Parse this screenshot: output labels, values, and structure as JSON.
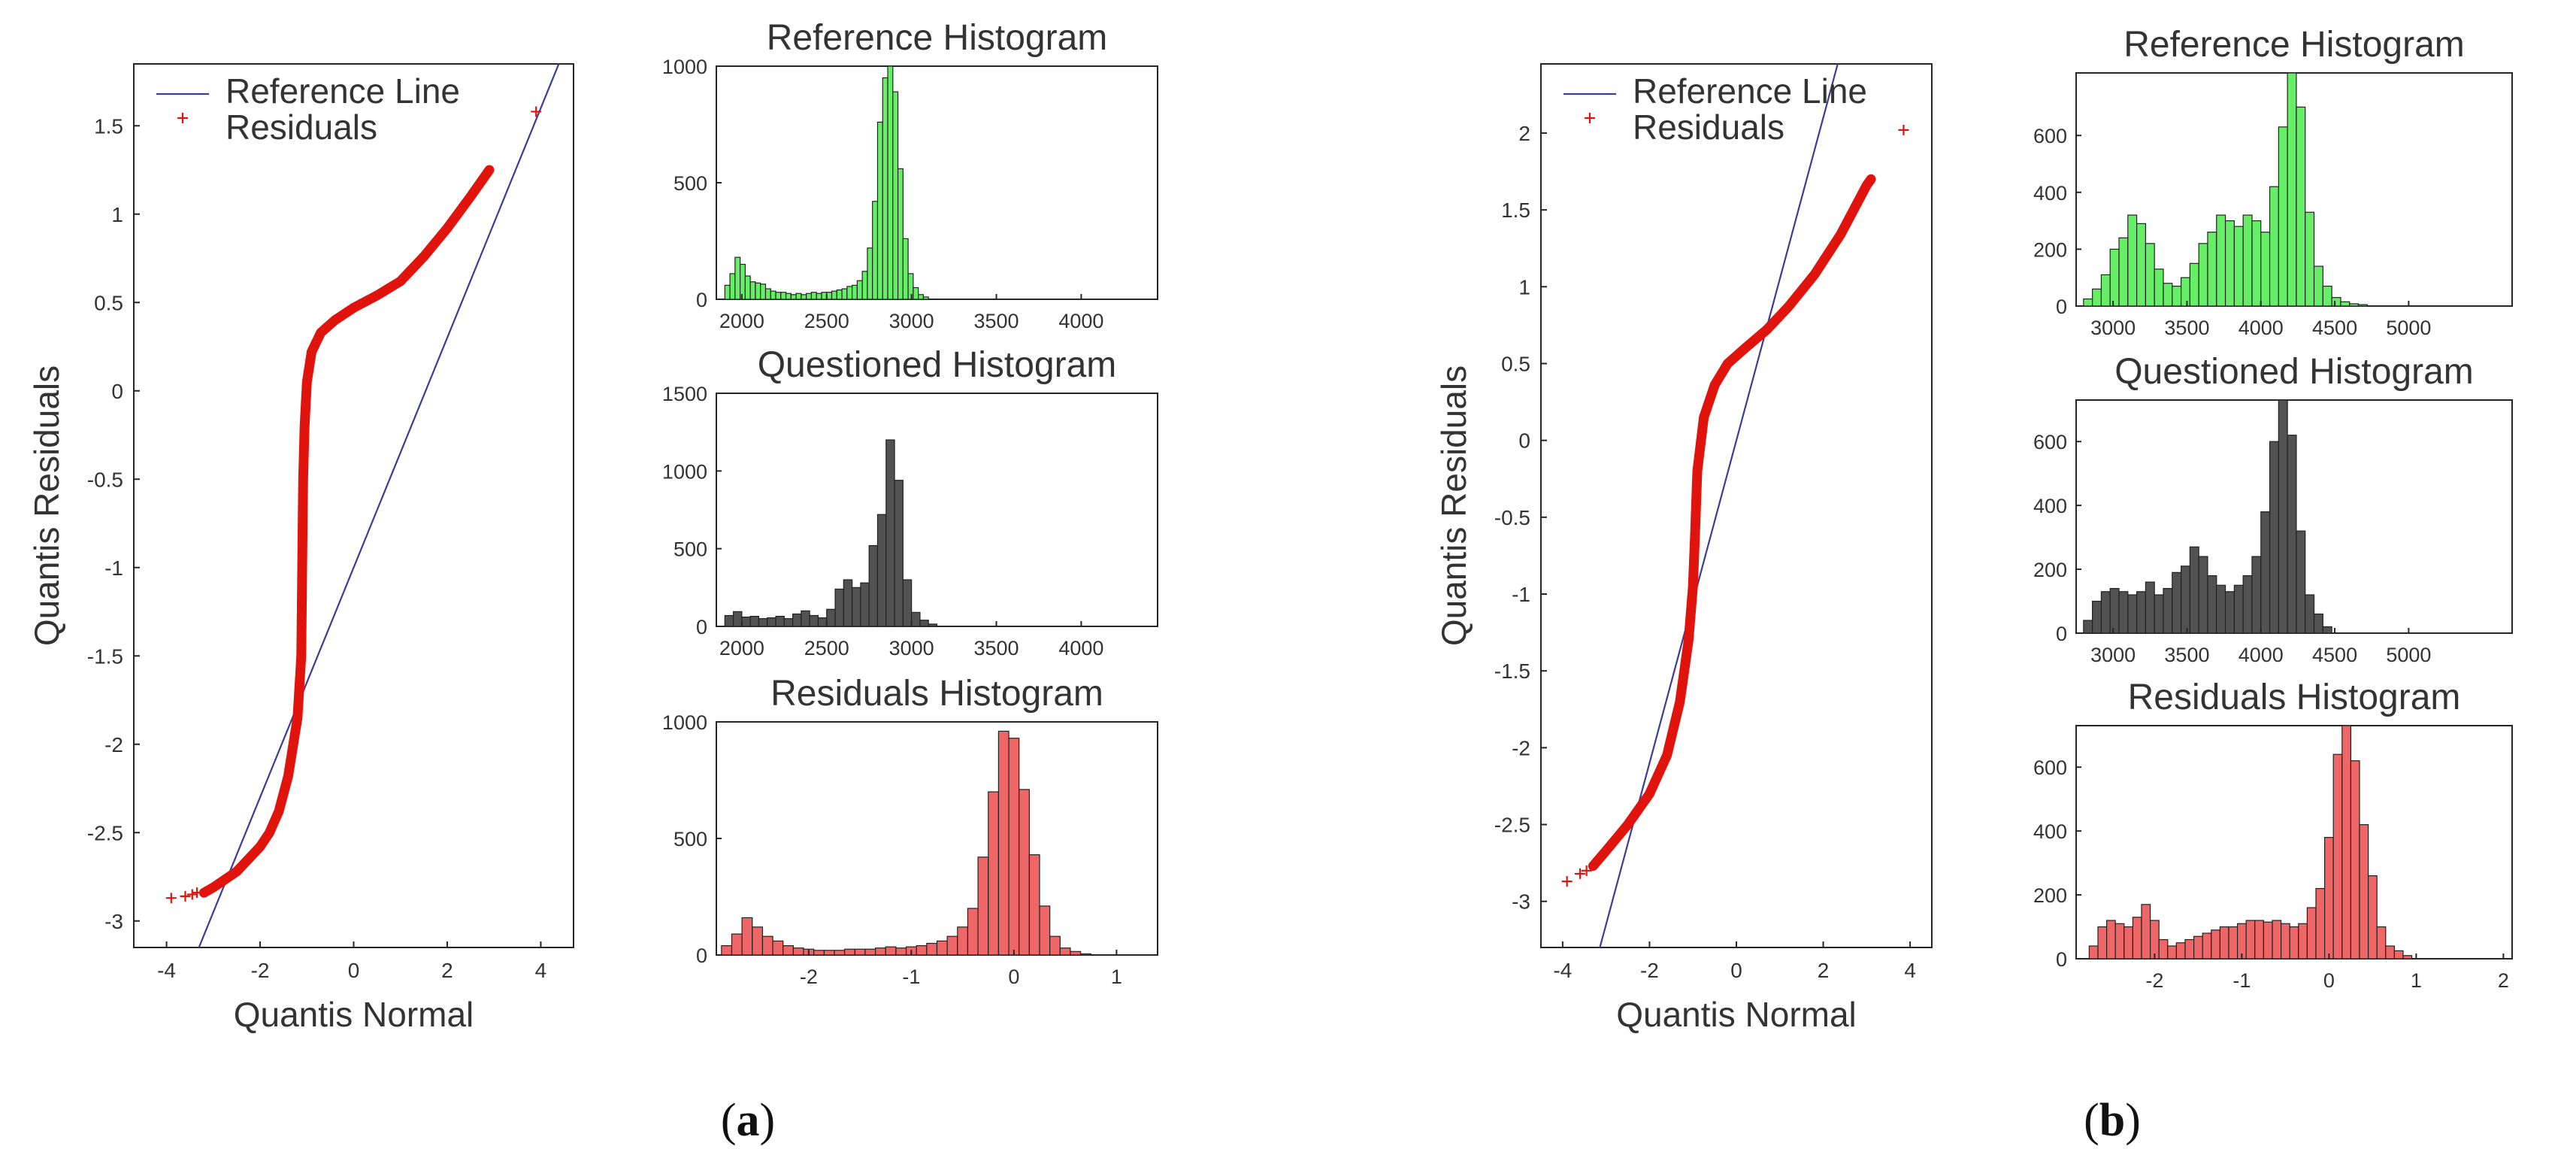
{
  "colors": {
    "reference_line": "#3c3c96",
    "residual_marker": "#e0140c",
    "ref_hist_fill": "#66ee66",
    "ques_hist_fill": "#525252",
    "resid_hist_fill": "#ee6666",
    "axes": "#262626",
    "text": "#333333"
  },
  "panels": [
    {
      "caption_letter": "a",
      "caption_open": "(",
      "caption_close": ")",
      "qq": {
        "xlabel": "Quantis Normal",
        "ylabel": "Quantis Residuals",
        "legend": [
          "Reference Line",
          "Residuals"
        ],
        "xlim": [
          -4.7,
          4.7
        ],
        "ylim": [
          -3.15,
          1.85
        ],
        "xticks": [
          -4,
          -2,
          0,
          2,
          4
        ],
        "yticks": [
          1.5,
          1,
          0.5,
          0,
          -0.5,
          -1,
          -1.5,
          -2,
          -2.5,
          -3
        ],
        "xtick_labels": [
          "-4",
          "-2",
          "0",
          "2",
          "4"
        ],
        "ytick_labels": [
          "1.5",
          "1",
          "0.5",
          "0",
          "-0.5",
          "-1",
          "-1.5",
          "-2",
          "-2.5",
          "-3"
        ],
        "ref_line": {
          "slope": 0.65,
          "intercept": -1.0
        },
        "residual_curve": [
          [
            -3.2,
            -2.84
          ],
          [
            -3.0,
            -2.81
          ],
          [
            -2.5,
            -2.72
          ],
          [
            -2.0,
            -2.58
          ],
          [
            -1.8,
            -2.5
          ],
          [
            -1.6,
            -2.38
          ],
          [
            -1.4,
            -2.18
          ],
          [
            -1.2,
            -1.85
          ],
          [
            -1.12,
            -1.5
          ],
          [
            -1.1,
            -1.0
          ],
          [
            -1.08,
            -0.5
          ],
          [
            -1.05,
            -0.2
          ],
          [
            -1.0,
            0.05
          ],
          [
            -0.9,
            0.22
          ],
          [
            -0.7,
            0.33
          ],
          [
            -0.4,
            0.4
          ],
          [
            0.0,
            0.47
          ],
          [
            0.5,
            0.54
          ],
          [
            1.0,
            0.62
          ],
          [
            1.5,
            0.76
          ],
          [
            2.0,
            0.92
          ],
          [
            2.5,
            1.1
          ],
          [
            2.9,
            1.25
          ]
        ],
        "outliers": [
          [
            -3.9,
            -2.87
          ],
          [
            -3.6,
            -2.86
          ],
          [
            -3.45,
            -2.85
          ],
          [
            -3.35,
            -2.84
          ],
          [
            3.9,
            1.58
          ]
        ]
      },
      "hist_titles": [
        "Reference Histogram",
        "Questioned Histogram",
        "Residuals Histogram"
      ],
      "ref_hist": {
        "xlim": [
          1850,
          4450
        ],
        "ylim": [
          0,
          1000
        ],
        "xticks": [
          2000,
          2500,
          3000,
          3500,
          4000
        ],
        "yticks": [
          0,
          500,
          1000
        ],
        "xtick_labels": [
          "2000",
          "2500",
          "3000",
          "3500",
          "4000"
        ],
        "ytick_labels": [
          "0",
          "500",
          "1000"
        ],
        "bin_start": 1900,
        "bin_width": 30,
        "values": [
          60,
          110,
          180,
          150,
          100,
          75,
          70,
          65,
          45,
          35,
          30,
          30,
          25,
          20,
          25,
          20,
          25,
          30,
          25,
          30,
          30,
          35,
          40,
          45,
          55,
          60,
          80,
          120,
          220,
          420,
          760,
          950,
          1000,
          890,
          560,
          260,
          110,
          50,
          20,
          10
        ]
      },
      "ques_hist": {
        "xlim": [
          1850,
          4450
        ],
        "ylim": [
          0,
          1500
        ],
        "xticks": [
          2000,
          2500,
          3000,
          3500,
          4000
        ],
        "yticks": [
          0,
          500,
          1000,
          1500
        ],
        "xtick_labels": [
          "2000",
          "2500",
          "3000",
          "3500",
          "4000"
        ],
        "ytick_labels": [
          "0",
          "500",
          "1000",
          "1500"
        ],
        "bin_start": 1900,
        "bin_width": 50,
        "values": [
          70,
          95,
          60,
          65,
          50,
          55,
          65,
          50,
          80,
          100,
          70,
          55,
          110,
          240,
          300,
          250,
          280,
          520,
          720,
          1200,
          940,
          300,
          90,
          40,
          15
        ]
      },
      "resid_hist": {
        "xlim": [
          -2.9,
          1.4
        ],
        "ylim": [
          0,
          1000
        ],
        "xticks": [
          -2,
          -1,
          0,
          1
        ],
        "yticks": [
          0,
          500,
          1000
        ],
        "xtick_labels": [
          "-2",
          "-1",
          "0",
          "1"
        ],
        "ytick_labels": [
          "0",
          "500",
          "1000"
        ],
        "bin_start": -2.85,
        "bin_width": 0.1,
        "values": [
          40,
          90,
          160,
          120,
          80,
          60,
          40,
          30,
          25,
          20,
          20,
          20,
          25,
          25,
          25,
          30,
          35,
          30,
          35,
          40,
          50,
          60,
          80,
          120,
          200,
          420,
          700,
          960,
          930,
          710,
          430,
          210,
          80,
          30,
          15,
          5
        ]
      }
    },
    {
      "caption_letter": "b",
      "caption_open": "(",
      "caption_close": ")",
      "qq": {
        "xlabel": "Quantis Normal",
        "ylabel": "Quantis Residuals",
        "legend": [
          "Reference Line",
          "Residuals"
        ],
        "xlim": [
          -4.5,
          4.5
        ],
        "ylim": [
          -3.3,
          2.45
        ],
        "xticks": [
          -4,
          -2,
          0,
          2,
          4
        ],
        "yticks": [
          2,
          1.5,
          1,
          0.5,
          0,
          -0.5,
          -1,
          -1.5,
          -2,
          -2.5,
          -3
        ],
        "xtick_labels": [
          "-4",
          "-2",
          "0",
          "2",
          "4"
        ],
        "ytick_labels": [
          "2",
          "1.5",
          "1",
          "0.5",
          "0",
          "-0.5",
          "-1",
          "-1.5",
          "-2",
          "-2.5",
          "-3"
        ],
        "ref_line": {
          "slope": 1.05,
          "intercept": 0.0
        },
        "residual_curve": [
          [
            -3.3,
            -2.77
          ],
          [
            -3.0,
            -2.67
          ],
          [
            -2.5,
            -2.5
          ],
          [
            -2.0,
            -2.3
          ],
          [
            -1.6,
            -2.05
          ],
          [
            -1.3,
            -1.7
          ],
          [
            -1.1,
            -1.3
          ],
          [
            -1.0,
            -0.95
          ],
          [
            -0.95,
            -0.6
          ],
          [
            -0.9,
            -0.2
          ],
          [
            -0.75,
            0.15
          ],
          [
            -0.5,
            0.36
          ],
          [
            -0.2,
            0.5
          ],
          [
            0.2,
            0.6
          ],
          [
            0.7,
            0.72
          ],
          [
            1.2,
            0.87
          ],
          [
            1.8,
            1.08
          ],
          [
            2.4,
            1.34
          ],
          [
            3.0,
            1.66
          ],
          [
            3.1,
            1.7
          ]
        ],
        "outliers": [
          [
            -3.9,
            -2.87
          ],
          [
            -3.6,
            -2.82
          ],
          [
            -3.45,
            -2.8
          ],
          [
            3.85,
            2.02
          ]
        ]
      },
      "hist_titles": [
        "Reference Histogram",
        "Questioned Histogram",
        "Residuals Histogram"
      ],
      "ref_hist": {
        "xlim": [
          2750,
          5700
        ],
        "ylim": [
          0,
          820
        ],
        "xticks": [
          3000,
          3500,
          4000,
          4500,
          5000
        ],
        "yticks": [
          0,
          200,
          400,
          600
        ],
        "xtick_labels": [
          "3000",
          "3500",
          "4000",
          "4500",
          "5000"
        ],
        "ytick_labels": [
          "0",
          "200",
          "400",
          "600"
        ],
        "bin_start": 2800,
        "bin_width": 60,
        "values": [
          25,
          60,
          110,
          200,
          240,
          320,
          290,
          220,
          130,
          80,
          70,
          100,
          150,
          220,
          260,
          320,
          300,
          280,
          320,
          300,
          260,
          420,
          630,
          820,
          700,
          330,
          140,
          70,
          30,
          15,
          8,
          5
        ]
      },
      "ques_hist": {
        "xlim": [
          2750,
          5700
        ],
        "ylim": [
          0,
          730
        ],
        "xticks": [
          3000,
          3500,
          4000,
          4500,
          5000
        ],
        "yticks": [
          0,
          200,
          400,
          600
        ],
        "xtick_labels": [
          "3000",
          "3500",
          "4000",
          "4500",
          "5000"
        ],
        "ytick_labels": [
          "0",
          "200",
          "400",
          "600"
        ],
        "bin_start": 2800,
        "bin_width": 60,
        "values": [
          40,
          100,
          130,
          140,
          130,
          120,
          130,
          160,
          120,
          140,
          190,
          210,
          270,
          240,
          180,
          150,
          130,
          150,
          180,
          240,
          380,
          600,
          730,
          620,
          320,
          120,
          60,
          20
        ]
      },
      "resid_hist": {
        "xlim": [
          -2.9,
          2.1
        ],
        "ylim": [
          0,
          730
        ],
        "xticks": [
          -2,
          -1,
          0,
          1,
          2
        ],
        "yticks": [
          0,
          200,
          400,
          600
        ],
        "xtick_labels": [
          "-2",
          "-1",
          "0",
          "1",
          "2"
        ],
        "ytick_labels": [
          "0",
          "200",
          "400",
          "600"
        ],
        "bin_start": -2.75,
        "bin_width": 0.1,
        "values": [
          40,
          100,
          120,
          110,
          100,
          130,
          170,
          120,
          60,
          40,
          50,
          60,
          70,
          80,
          90,
          100,
          100,
          110,
          120,
          120,
          115,
          120,
          110,
          100,
          110,
          160,
          220,
          380,
          640,
          730,
          620,
          420,
          260,
          100,
          40,
          25,
          10
        ]
      }
    }
  ]
}
